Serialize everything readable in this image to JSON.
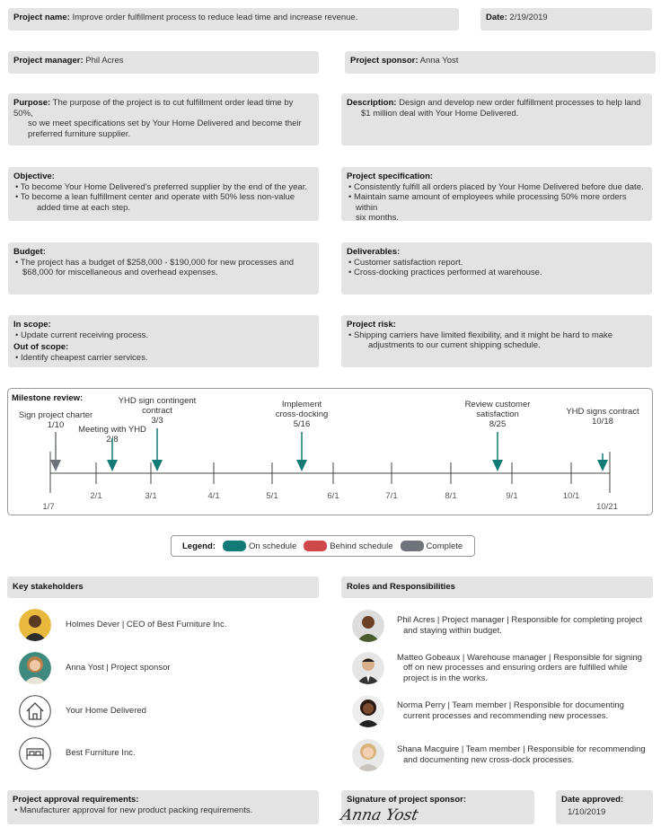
{
  "header": {
    "project_name_label": "Project name:",
    "project_name": "Improve order fulfillment process to reduce lead time and increase revenue.",
    "date_label": "Date:",
    "date": "2/19/2019",
    "manager_label": "Project manager:",
    "manager": "Phil Acres",
    "sponsor_label": "Project sponsor:",
    "sponsor": "Anna Yost"
  },
  "purpose": {
    "label": "Purpose:",
    "line1": "The purpose of the project is to cut fulfillment order lead time by 50%,",
    "line2": "so we meet specifications set by Your Home Delivered and become their",
    "line3": "preferred furniture supplier."
  },
  "description": {
    "label": "Description:",
    "line1": "Design and develop new order fulfillment processes to help land",
    "line2": "$1 million deal with Your Home Delivered."
  },
  "objective": {
    "label": "Objective:",
    "item1": "To become Your Home Delivered's preferred supplier by the end of the year.",
    "item2_line1": "To become a lean fulfillment center and operate with 50% less non-value",
    "item2_line2": "added time at each step."
  },
  "specification": {
    "label": "Project specification:",
    "item1": "Consistently fulfill all orders placed by Your Home Delivered before due date.",
    "item2_line1": "Maintain same amount of employees while processing 50% more orders within",
    "item2_line2": "six months."
  },
  "budget": {
    "label": "Budget:",
    "line1": "The project has a budget of $258,000 - $190,000 for new processes and",
    "line2": "$68,000 for miscellaneous and overhead expenses."
  },
  "deliverables": {
    "label": "Deliverables:",
    "item1": "Customer satisfaction report.",
    "item2": "Cross-docking practices performed at warehouse."
  },
  "scope": {
    "in_label": "In scope:",
    "in_item": "Update current receiving process.",
    "out_label": "Out of scope:",
    "out_item": "Identify cheapest carrier services."
  },
  "risk": {
    "label": "Project risk:",
    "line1": "Shipping carriers have limited flexibility, and it might be hard to make",
    "line2": "adjustments to our current shipping schedule."
  },
  "milestones": {
    "title": "Milestone review:",
    "start_label": "1/7",
    "end_label": "10/21",
    "ticks": [
      "2/1",
      "3/1",
      "4/1",
      "5/1",
      "6/1",
      "7/1",
      "8/1",
      "9/1",
      "10/1"
    ],
    "items": [
      {
        "lines": [
          "Sign project charter",
          "1/10"
        ],
        "status": "complete"
      },
      {
        "lines": [
          "Meeting with YHD",
          "2/8"
        ],
        "status": "on_schedule"
      },
      {
        "lines": [
          "YHD sign contingent",
          "contract",
          "3/3"
        ],
        "status": "on_schedule"
      },
      {
        "lines": [
          "Implement",
          "cross-docking",
          "5/16"
        ],
        "status": "on_schedule"
      },
      {
        "lines": [
          "Review customer",
          "satisfaction",
          "8/25"
        ],
        "status": "on_schedule"
      },
      {
        "lines": [
          "YHD signs contract",
          "10/18"
        ],
        "status": "on_schedule"
      }
    ]
  },
  "legend": {
    "label": "Legend:",
    "on_schedule": "On schedule",
    "behind_schedule": "Behind schedule",
    "complete": "Complete"
  },
  "colors": {
    "on_schedule": "#127b78",
    "behind_schedule": "#d0474a",
    "complete": "#6f737a"
  },
  "stakeholders": {
    "title": "Key stakeholders",
    "items": [
      {
        "text": "Holmes Dever | CEO of Best Furniture Inc.",
        "icon": "person-avatar"
      },
      {
        "text": "Anna Yost | Project sponsor",
        "icon": "person-avatar"
      },
      {
        "text": "Your Home Delivered",
        "icon": "house-icon"
      },
      {
        "text": "Best Furniture Inc.",
        "icon": "bed-icon"
      }
    ]
  },
  "roles": {
    "title": "Roles and Responsibilities",
    "items": [
      {
        "line1": "Phil Acres | Project manager | Responsible for completing project",
        "line2": "and staying within budget.",
        "line3": ""
      },
      {
        "line1": "Matteo Gobeaux | Warehouse manager | Responsible for signing",
        "line2": "off on new processes and ensuring orders are fulfilled while",
        "line3": "project is in the works."
      },
      {
        "line1": "Norma Perry | Team member | Responsible for documenting",
        "line2": "current processes and recommending new processes.",
        "line3": ""
      },
      {
        "line1": "Shana Macguire | Team member | Responsible for recommending",
        "line2": "and documenting new cross-dock processes.",
        "line3": ""
      }
    ]
  },
  "footer": {
    "approval_label": "Project approval requirements:",
    "approval_item": "Manufacturer approval for new product packing requirements.",
    "signature_label": "Signature of project sponsor:",
    "signature": "Anna Yost",
    "approved_label": "Date approved:",
    "approved_date": "1/10/2019"
  }
}
